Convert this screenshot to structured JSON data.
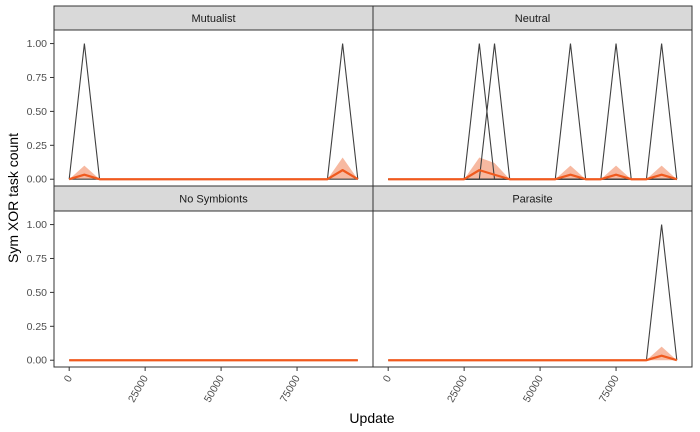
{
  "chart_data": {
    "type": "line",
    "xlabel": "Update",
    "ylabel": "Sym XOR task count",
    "xlim": [
      -5000,
      100000
    ],
    "ylim": [
      -0.05,
      1.1
    ],
    "x_ticks": [
      0,
      25000,
      50000,
      75000
    ],
    "x_tick_labels": [
      "0",
      "25000",
      "50000",
      "75000"
    ],
    "y_ticks": [
      0,
      0.25,
      0.5,
      0.75,
      1.0
    ],
    "y_tick_labels": [
      "0.00",
      "0.25",
      "0.50",
      "0.75",
      "1.00"
    ],
    "x_tick_labels_rotated": true,
    "grid": false,
    "colors": {
      "mean_line": "#f05a1e",
      "ribbon": "#f5a88a",
      "replicate_line": "#404040",
      "strip_fill": "#d9d9d9",
      "panel_border": "#333333"
    },
    "panels": [
      {
        "title": "Mutualist",
        "replicates": [
          {
            "x": [
              0,
              5000,
              10000,
              95000
            ],
            "y": [
              0,
              1,
              0,
              0
            ]
          },
          {
            "x": [
              0,
              85000,
              90000,
              95000
            ],
            "y": [
              0,
              0,
              1,
              0
            ]
          }
        ],
        "mean": {
          "x": [
            0,
            5000,
            10000,
            85000,
            90000,
            95000
          ],
          "y": [
            0,
            0.033,
            0,
            0,
            0.067,
            0
          ],
          "upper": [
            0,
            0.1,
            0,
            0,
            0.16,
            0
          ],
          "lower": [
            0,
            0,
            0,
            0,
            0,
            0
          ]
        }
      },
      {
        "title": "Neutral",
        "replicates": [
          {
            "x": [
              0,
              25000,
              30000,
              35000,
              95000
            ],
            "y": [
              0,
              0,
              1,
              0,
              0
            ]
          },
          {
            "x": [
              0,
              30000,
              35000,
              40000,
              95000
            ],
            "y": [
              0,
              0,
              1,
              0,
              0
            ]
          },
          {
            "x": [
              0,
              55000,
              60000,
              65000,
              95000
            ],
            "y": [
              0,
              0,
              1,
              0,
              0
            ]
          },
          {
            "x": [
              0,
              70000,
              75000,
              80000,
              95000
            ],
            "y": [
              0,
              0,
              1,
              0,
              0
            ]
          },
          {
            "x": [
              0,
              85000,
              90000,
              95000
            ],
            "y": [
              0,
              0,
              1,
              0
            ]
          }
        ],
        "mean": {
          "x": [
            0,
            25000,
            30000,
            35000,
            40000,
            55000,
            60000,
            65000,
            70000,
            75000,
            80000,
            85000,
            90000,
            95000
          ],
          "y": [
            0,
            0,
            0.067,
            0.033,
            0,
            0,
            0.033,
            0,
            0,
            0.033,
            0,
            0,
            0.033,
            0
          ],
          "upper": [
            0,
            0,
            0.16,
            0.12,
            0,
            0,
            0.1,
            0,
            0,
            0.1,
            0,
            0,
            0.1,
            0
          ],
          "lower": [
            0,
            0,
            0,
            0,
            0,
            0,
            0,
            0,
            0,
            0,
            0,
            0,
            0,
            0
          ]
        }
      },
      {
        "title": "No Symbionts",
        "replicates": [
          {
            "x": [
              0,
              95000
            ],
            "y": [
              0,
              0
            ]
          }
        ],
        "mean": {
          "x": [
            0,
            95000
          ],
          "y": [
            0,
            0
          ],
          "upper": [
            0,
            0
          ],
          "lower": [
            0,
            0
          ]
        }
      },
      {
        "title": "Parasite",
        "replicates": [
          {
            "x": [
              0,
              85000,
              90000,
              95000
            ],
            "y": [
              0,
              0,
              1,
              0
            ]
          }
        ],
        "mean": {
          "x": [
            0,
            85000,
            90000,
            95000
          ],
          "y": [
            0,
            0,
            0.033,
            0
          ],
          "upper": [
            0,
            0,
            0.1,
            0
          ],
          "lower": [
            0,
            0,
            0,
            0
          ]
        }
      }
    ]
  }
}
